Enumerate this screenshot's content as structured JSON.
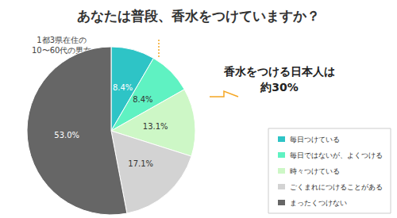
{
  "chart_data": {
    "type": "pie",
    "title": "あなたは普段、香水をつけていますか？",
    "subtitle": "1都3県在住の\n10〜60代の男女",
    "annotation": "香水をつける日本人は\n約30%",
    "categories": [
      "毎日つけている",
      "毎日ではないが、よくつける",
      "時々つけている",
      "ごくまれにつけることがある",
      "まったくつけない"
    ],
    "values": [
      8.4,
      8.4,
      13.1,
      17.1,
      53.0
    ],
    "value_labels": [
      "8.4%",
      "8.4%",
      "13.1%",
      "17.1%",
      "53.0%"
    ],
    "colors": [
      "#2ec4c6",
      "#5ff2c2",
      "#cdf7c6",
      "#d3d3d3",
      "#666666"
    ],
    "legend": "lower right",
    "data_labels": true
  }
}
